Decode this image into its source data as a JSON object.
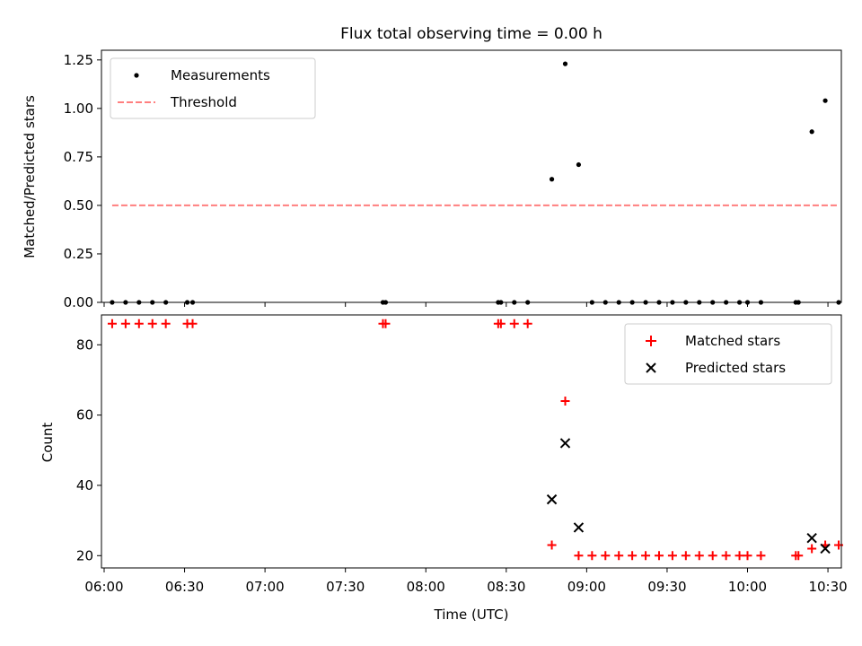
{
  "title": "Flux total observing time = 0.00 h",
  "colors": {
    "matched": "#ff0000",
    "predicted": "#000000",
    "threshold": "#ff7f7f",
    "measurement": "#000000"
  },
  "chart_data": [
    {
      "type": "scatter",
      "ylabel": "Matched/Predicted stars",
      "ylim": [
        0,
        1.3
      ],
      "yticks": [
        0,
        0.25,
        0.5,
        0.75,
        1.0,
        1.25
      ],
      "ytick_labels": [
        "0.00",
        "0.25",
        "0.50",
        "0.75",
        "1.00",
        "1.25"
      ],
      "xlim": [
        "05:59",
        "10:35"
      ],
      "legend": {
        "placement": "top-left",
        "entries": [
          "Measurements",
          "Threshold"
        ]
      },
      "series": [
        {
          "name": "Measurements",
          "marker": "dot",
          "x": [
            "06:03",
            "06:08",
            "06:13",
            "06:18",
            "06:23",
            "06:31",
            "06:33",
            "07:44",
            "07:45",
            "08:27",
            "08:28",
            "08:33",
            "08:38",
            "08:47",
            "08:52",
            "08:57",
            "09:02",
            "09:07",
            "09:12",
            "09:17",
            "09:22",
            "09:27",
            "09:32",
            "09:37",
            "09:42",
            "09:47",
            "09:52",
            "09:57",
            "10:00",
            "10:05",
            "10:18",
            "10:19",
            "10:24",
            "10:29",
            "10:34"
          ],
          "y": [
            0,
            0,
            0,
            0,
            0,
            0,
            0,
            0,
            0,
            0,
            0,
            0,
            0,
            0.635,
            1.23,
            0.71,
            0,
            0,
            0,
            0,
            0,
            0,
            0,
            0,
            0,
            0,
            0,
            0,
            0,
            0,
            0,
            0,
            0.88,
            1.04,
            0
          ]
        },
        {
          "name": "Threshold",
          "style": "dashed",
          "x": [
            "06:03",
            "10:34"
          ],
          "y": [
            0.5,
            0.5
          ]
        }
      ]
    },
    {
      "type": "scatter",
      "xlabel": "Time (UTC)",
      "ylabel": "Count",
      "ylim": [
        16.5,
        88.5
      ],
      "yticks": [
        20,
        40,
        60,
        80
      ],
      "ytick_labels": [
        "20",
        "40",
        "60",
        "80"
      ],
      "xticks": [
        "06:00",
        "06:30",
        "07:00",
        "07:30",
        "08:00",
        "08:30",
        "09:00",
        "09:30",
        "10:00",
        "10:30"
      ],
      "legend": {
        "placement": "top-right",
        "entries": [
          "Matched stars",
          "Predicted stars"
        ]
      },
      "series": [
        {
          "name": "Matched stars",
          "marker": "plus",
          "x": [
            "06:03",
            "06:08",
            "06:13",
            "06:18",
            "06:23",
            "06:31",
            "06:33",
            "07:44",
            "07:45",
            "08:27",
            "08:28",
            "08:33",
            "08:38",
            "08:47",
            "08:52",
            "08:57",
            "09:02",
            "09:07",
            "09:12",
            "09:17",
            "09:22",
            "09:27",
            "09:32",
            "09:37",
            "09:42",
            "09:47",
            "09:52",
            "09:57",
            "10:00",
            "10:05",
            "10:18",
            "10:19",
            "10:24",
            "10:29",
            "10:34"
          ],
          "y": [
            86,
            86,
            86,
            86,
            86,
            86,
            86,
            86,
            86,
            86,
            86,
            86,
            86,
            23,
            64,
            20,
            20,
            20,
            20,
            20,
            20,
            20,
            20,
            20,
            20,
            20,
            20,
            20,
            20,
            20,
            20,
            20,
            22,
            23,
            23
          ]
        },
        {
          "name": "Predicted stars",
          "marker": "x",
          "x": [
            "08:47",
            "08:52",
            "08:57",
            "10:24",
            "10:29"
          ],
          "y": [
            36,
            52,
            28,
            25,
            22
          ]
        }
      ]
    }
  ]
}
